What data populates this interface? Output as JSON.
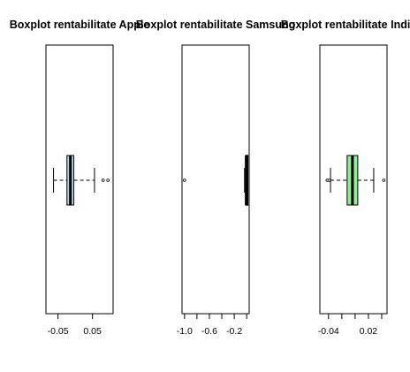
{
  "chart_data": [
    {
      "type": "boxplot",
      "orientation": "horizontal",
      "title": "Boxplot rentabilitate Apple",
      "box_fill": "#ADD8E6",
      "xlim": [
        -0.085,
        0.11
      ],
      "ticks": [
        -0.05,
        0.05
      ],
      "tick_labels": [
        "-0.05",
        "0.05"
      ],
      "stats": {
        "whisker_low": -0.063,
        "q1": -0.024,
        "median": -0.014,
        "q3": -0.004,
        "whisker_high": 0.056
      },
      "outliers": [
        0.081,
        0.095
      ]
    },
    {
      "type": "boxplot",
      "orientation": "horizontal",
      "title": "Boxplot rentabilitate Samsung",
      "box_fill": "#000000",
      "xlim": [
        -1.04,
        0.04
      ],
      "ticks": [
        -1.0,
        -0.8,
        -0.6,
        -0.4,
        -0.2,
        0.0
      ],
      "tick_labels": [
        "-1.0",
        "",
        "-0.6",
        "",
        "-0.2",
        ""
      ],
      "stats": {
        "whisker_low": -0.035,
        "q1": -0.012,
        "median": -0.008,
        "q3": 0.0,
        "whisker_high": 0.0
      },
      "outliers": [
        -1.0
      ]
    },
    {
      "type": "boxplot",
      "orientation": "horizontal",
      "title": "Boxplot rentabilitate Indice",
      "box_fill": "#90EE90",
      "xlim": [
        -0.053,
        0.048
      ],
      "ticks": [
        -0.04,
        -0.02,
        0.0,
        0.02,
        0.04
      ],
      "tick_labels": [
        "-0.04",
        "",
        "",
        "0.02",
        ""
      ],
      "stats": {
        "whisker_low": -0.037,
        "q1": -0.012,
        "median": -0.004,
        "q3": 0.004,
        "whisker_high": 0.028
      },
      "outliers": [
        -0.042,
        -0.039,
        0.043
      ]
    }
  ]
}
